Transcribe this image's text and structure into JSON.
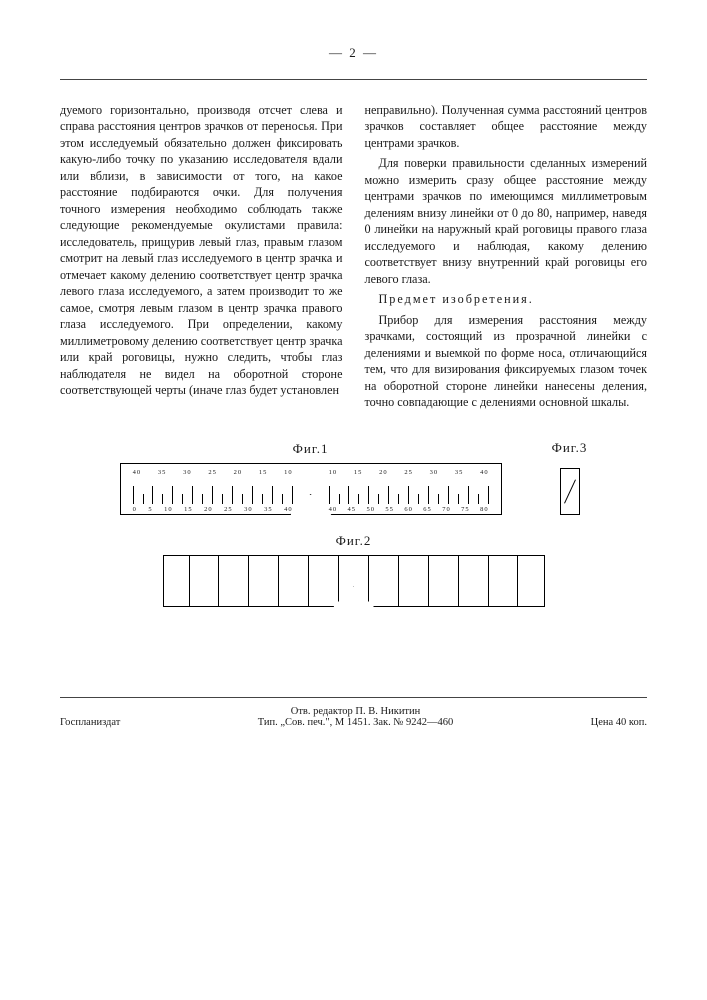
{
  "page_number": "— 2 —",
  "col_left_p1": "дуемого горизонтально, производя отсчет слева и справа расстояния центров зрачков от переносья. При этом исследуемый обязательно должен фиксировать какую-либо точку по указанию исследователя вдали или вблизи, в зависимости от того, на какое расстояние подбираются очки. Для получения точного измерения необходимо соблюдать также следующие рекомендуемые окулистами правила: исследователь, прищурив левый глаз, правым глазом смотрит на левый глаз исследуемого в центр зрачка и отмечает какому делению соответствует центр зрачка левого глаза исследуемого, а затем производит то же самое, смотря левым глазом в центр зрачка правого глаза исследуемого. При определении, какому миллиметровому делению соответствует центр зрачка или край роговицы, нужно следить, чтобы глаз наблюдателя не видел на оборотной стороне соответствующей черты (иначе глаз будет установлен",
  "col_right_p1": "неправильно). Полученная сумма расстояний центров зрачков составляет общее расстояние между центрами зрачков.",
  "col_right_p2": "Для поверки правильности сделанных измерений можно измерить сразу общее расстояние между центрами зрачков по имеющимся миллиметровым делениям внизу линейки от 0 до 80, например, наведя 0 линейки на наружный край роговицы правого глаза исследуемого и наблюдая, какому делению соответствует внизу внутренний край роговицы его левого глаза.",
  "subject_heading": "Предмет изобретения.",
  "col_right_p3": "Прибор для измерения расстояния между зрачками, состоящий из прозрачной линейки с делениями и выемкой по форме носа, отличающийся тем, что для визирования фиксируемых глазом точек на оборотной стороне линейки нанесены деления, точно совпадающие с делениями основной шкалы.",
  "fig1_label": "Фиг.1",
  "fig2_label": "Фиг.2",
  "fig3_label": "Фиг.3",
  "fig1_top_labels": [
    "40",
    "35",
    "30",
    "25",
    "20",
    "15",
    "10"
  ],
  "fig1_bot_labels_left": [
    "0",
    "5",
    "10",
    "15",
    "20",
    "25",
    "30",
    "35",
    "40"
  ],
  "fig1_bot_labels_right": [
    "40",
    "45",
    "50",
    "55",
    "60",
    "65",
    "70",
    "75",
    "80"
  ],
  "footer_left": "Госпланиздат",
  "footer_center_1": "Отв. редактор П. В. Никитин",
  "footer_center_2": "Тип. „Сов. печ.\", М 1451. Зак. № 9242—460",
  "footer_right": "Цена 40 коп."
}
